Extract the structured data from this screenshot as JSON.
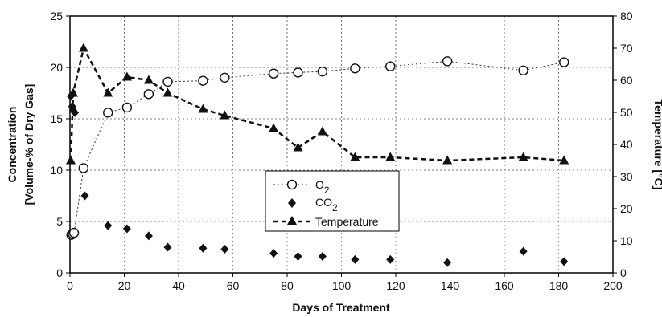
{
  "chart_data": {
    "type": "line",
    "xlabel": "Days of Treatment",
    "ylabel_lines": [
      "Concentration",
      "[Volume-% of Dry Gas]"
    ],
    "y2label": "Temperature [°C]",
    "xlim": [
      0,
      200
    ],
    "ylim": [
      0,
      25
    ],
    "y2lim": [
      0,
      80
    ],
    "xticks": [
      "0",
      "20",
      "40",
      "60",
      "80",
      "100",
      "120",
      "140",
      "160",
      "180",
      "200"
    ],
    "yticks": [
      "0",
      "5",
      "10",
      "15",
      "20",
      "25"
    ],
    "y2ticks": [
      "0",
      "10",
      "20",
      "30",
      "40",
      "50",
      "60",
      "70",
      "80"
    ],
    "grid": true,
    "legend_position": "center",
    "series": [
      {
        "name": "O2",
        "axis": "left",
        "marker": "open-circle",
        "line": "dotted",
        "x": [
          0.5,
          1,
          1.5,
          5,
          14,
          21,
          29,
          36,
          49,
          57,
          75,
          84,
          93,
          105,
          118,
          139,
          167,
          182
        ],
        "y": [
          3.7,
          3.8,
          3.9,
          10.2,
          15.6,
          16.1,
          17.4,
          18.6,
          18.7,
          19.0,
          19.4,
          19.5,
          19.6,
          19.9,
          20.1,
          20.6,
          19.7,
          20.5
        ]
      },
      {
        "name": "CO2",
        "axis": "left",
        "marker": "filled-diamond",
        "line": "none",
        "x": [
          0.3,
          0.8,
          1.2,
          1.8,
          5.5,
          14,
          21,
          29,
          36,
          49,
          57,
          75,
          84,
          93,
          105,
          118,
          139,
          167,
          182
        ],
        "y": [
          17.2,
          16.2,
          15.8,
          15.6,
          7.5,
          4.6,
          4.3,
          3.6,
          2.5,
          2.4,
          2.3,
          1.9,
          1.6,
          1.6,
          1.3,
          1.3,
          1.0,
          2.1,
          1.1
        ]
      },
      {
        "name": "Temperature",
        "axis": "right",
        "marker": "filled-triangle",
        "line": "dashed",
        "x": [
          0.3,
          1.2,
          5,
          14,
          21,
          29,
          36,
          49,
          57,
          75,
          84,
          93,
          105,
          118,
          139,
          167,
          182
        ],
        "y": [
          35,
          56,
          70,
          56,
          61,
          60,
          56,
          51,
          49,
          45,
          39,
          44,
          36,
          36,
          35,
          36,
          35
        ]
      }
    ]
  },
  "legend": {
    "o2_base": "O",
    "o2_sub": "2",
    "co2_base": "CO",
    "co2_sub": "2",
    "temp_label": "Temperature"
  }
}
